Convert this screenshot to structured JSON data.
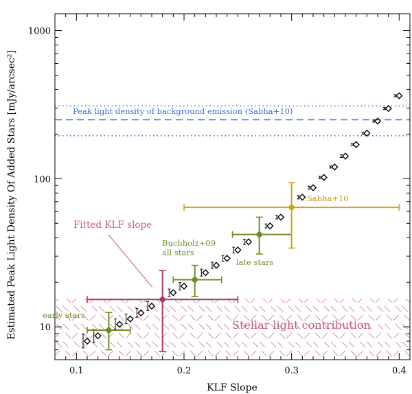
{
  "chart_data": {
    "type": "scatter",
    "xlabel": "KLF Slope",
    "ylabel": "Estimated Peak Light Density Of Added Stars [mJy/arcsec²]",
    "x_ticks": [
      "0.1",
      "0.2",
      "0.3",
      "0.4"
    ],
    "y_ticks": [
      "10",
      "100",
      "1000"
    ],
    "xlim": [
      0.08,
      0.41
    ],
    "ylim": [
      6,
      1300
    ],
    "y_scale": "log",
    "grid": false,
    "series": [
      {
        "marker": "open-diamond",
        "color": "#000000",
        "points": [
          {
            "x": 0.11,
            "y": 8.0,
            "err_low": 7.2,
            "err_high": 8.9
          },
          {
            "x": 0.12,
            "y": 8.7,
            "err_low": 7.8,
            "err_high": 9.6
          },
          {
            "x": 0.14,
            "y": 10.4,
            "err_low": 9.6,
            "err_high": 11.3
          },
          {
            "x": 0.15,
            "y": 11.3,
            "err_low": 10.5,
            "err_high": 12.2
          },
          {
            "x": 0.16,
            "y": 12.4,
            "err_low": 11.6,
            "err_high": 13.3
          },
          {
            "x": 0.17,
            "y": 13.8,
            "err_low": 12.9,
            "err_high": 14.8
          },
          {
            "x": 0.19,
            "y": 17.0,
            "err_low": 16.0,
            "err_high": 18.0
          },
          {
            "x": 0.2,
            "y": 18.8,
            "err_low": 17.7,
            "err_high": 19.9
          },
          {
            "x": 0.22,
            "y": 23.2,
            "err_low": 22.0,
            "err_high": 24.5
          },
          {
            "x": 0.23,
            "y": 26.0,
            "err_low": 24.8,
            "err_high": 27.3
          },
          {
            "x": 0.24,
            "y": 29.0,
            "err_low": 27.7,
            "err_high": 30.4
          },
          {
            "x": 0.25,
            "y": 33.0,
            "err_low": 31.5,
            "err_high": 34.5
          },
          {
            "x": 0.26,
            "y": 37.5,
            "err_low": 36.0,
            "err_high": 39.0
          },
          {
            "x": 0.28,
            "y": 48.0,
            "err_low": 46.5,
            "err_high": 49.5
          },
          {
            "x": 0.29,
            "y": 55.0,
            "err_low": 53.5,
            "err_high": 56.5
          },
          {
            "x": 0.31,
            "y": 75.0,
            "err_low": 73.0,
            "err_high": 77.0
          },
          {
            "x": 0.32,
            "y": 87.0,
            "err_low": 85.0,
            "err_high": 89.0
          },
          {
            "x": 0.33,
            "y": 102.0,
            "err_low": 100.0,
            "err_high": 104.0
          },
          {
            "x": 0.34,
            "y": 120.0,
            "err_low": 118.0,
            "err_high": 122.0
          },
          {
            "x": 0.35,
            "y": 142.0,
            "err_low": 139.0,
            "err_high": 145.0
          },
          {
            "x": 0.36,
            "y": 170.0,
            "err_low": 167.0,
            "err_high": 173.0
          },
          {
            "x": 0.37,
            "y": 203.0,
            "err_low": 200.0,
            "err_high": 206.0
          },
          {
            "x": 0.38,
            "y": 245.0,
            "err_low": 241.0,
            "err_high": 249.0
          },
          {
            "x": 0.39,
            "y": 298.0,
            "err_low": 293.0,
            "err_high": 303.0
          },
          {
            "x": 0.4,
            "y": 363.0,
            "err_low": 357.0,
            "err_high": 369.0
          }
        ]
      }
    ],
    "highlighted_points": [
      {
        "label": "Fitted KLF slope",
        "color": "#a8386a",
        "x": 0.18,
        "y": 15.3,
        "x_low": 0.11,
        "x_high": 0.25,
        "y_low": 6.8,
        "y_high": 24.0,
        "label_color": "#c45a80"
      },
      {
        "label": "early stars",
        "color": "#6b8e23",
        "x": 0.13,
        "y": 9.5,
        "x_low": 0.11,
        "x_high": 0.15,
        "y_low": 7.0,
        "y_high": 12.5
      },
      {
        "label": "Buchholz+09\nall stars",
        "color": "#6b8e23",
        "x": 0.21,
        "y": 20.8,
        "x_low": 0.19,
        "x_high": 0.235,
        "y_low": 16.0,
        "y_high": 26.0
      },
      {
        "label": "late stars",
        "color": "#6b8e23",
        "x": 0.27,
        "y": 42.0,
        "x_low": 0.245,
        "x_high": 0.3,
        "y_low": 31.0,
        "y_high": 55.0
      },
      {
        "label": "Sabha+10",
        "color": "#d4a017",
        "x": 0.3,
        "y": 64.0,
        "x_low": 0.2,
        "x_high": 0.4,
        "y_low": 34.0,
        "y_high": 94.0
      }
    ],
    "reference_lines": [
      {
        "label": "Peak light density of background emission (Sabha+10)",
        "y": 250,
        "y_low": 195,
        "y_high": 310,
        "color": "#3b6fd6"
      }
    ],
    "shaded_region": {
      "label": "Stellar light contribution",
      "y_low": 6,
      "y_high": 15.5,
      "color": "#d98aa8"
    },
    "annotations": {
      "fitted_label": "Fitted KLF slope",
      "early_label": "early stars",
      "buchholz_label_1": "Buchholz+09",
      "buchholz_label_2": "all stars",
      "late_label": "late stars",
      "sabha_label": "Sabha+10",
      "background_label": "Peak light density of background emission (Sabha+10)",
      "stellar_label": "Stellar light contribution"
    },
    "colors": {
      "axis": "#000000",
      "data_points": "#000000",
      "fitted": "#a8386a",
      "buchholz": "#6b8e23",
      "sabha": "#d4a017",
      "background_line": "#3b6fd6",
      "hatch": "#d98aa8"
    }
  }
}
